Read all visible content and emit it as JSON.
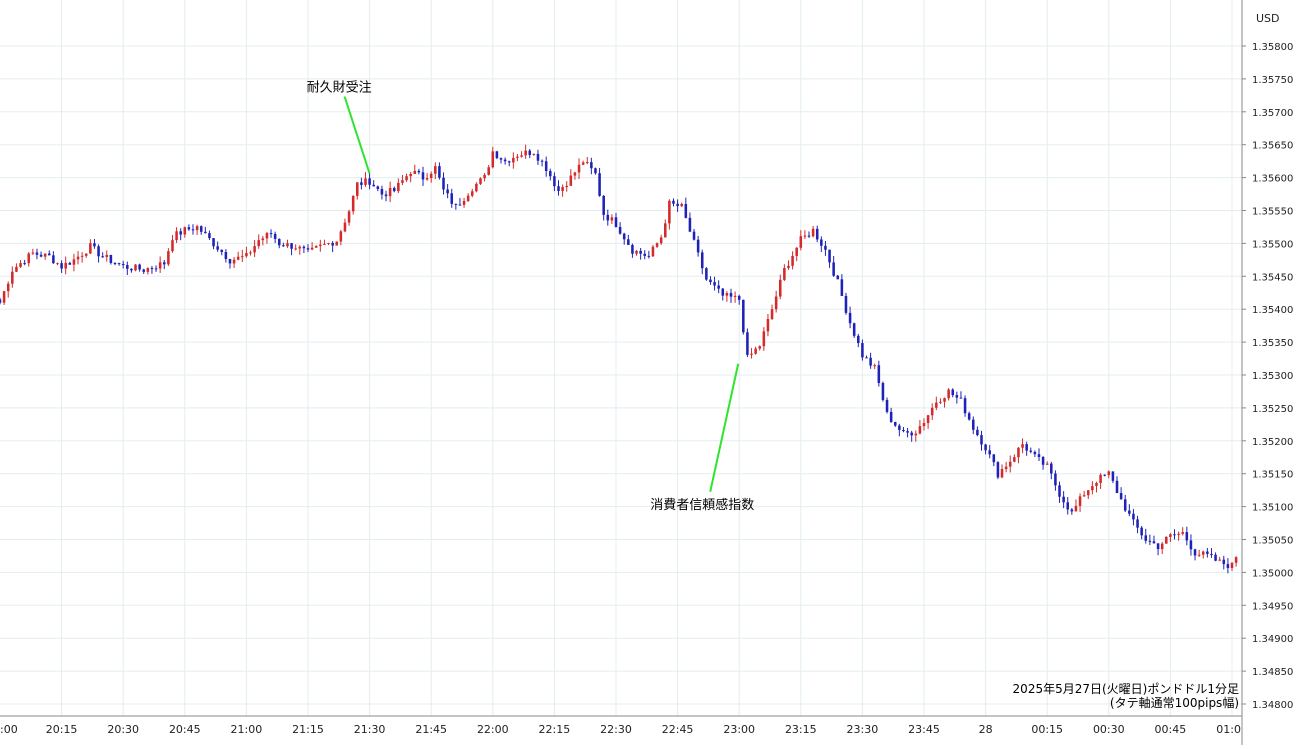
{
  "chart_data": {
    "type": "candlestick",
    "currency_label": "USD",
    "caption_line1": "2025年5月27日(火曜日)ポンドドル1分足",
    "caption_line2": "(タテ軸通常100pips幅)",
    "y_ticks": [
      "1.35800",
      "1.35750",
      "1.35700",
      "1.35650",
      "1.35600",
      "1.35550",
      "1.35500",
      "1.35450",
      "1.35400",
      "1.35350",
      "1.35300",
      "1.35250",
      "1.35200",
      "1.35150",
      "1.35100",
      "1.35050",
      "1.35000",
      "1.34950",
      "1.34900",
      "1.34850",
      "1.34800"
    ],
    "x_ticks": [
      ":00",
      "20:15",
      "20:30",
      "20:45",
      "21:00",
      "21:15",
      "21:30",
      "21:45",
      "22:00",
      "22:15",
      "22:30",
      "22:45",
      "23:00",
      "23:15",
      "23:30",
      "23:45",
      "28",
      "00:15",
      "00:30",
      "00:45",
      "01:0"
    ],
    "annotations": [
      {
        "label": "耐久財受注",
        "time": "21:30",
        "price": 1.356
      },
      {
        "label": "消費者信頼感指数",
        "time": "23:00",
        "price": 1.3532
      }
    ],
    "up_color": "#d42a2a",
    "down_color": "#1f22b8",
    "marker_line_color": "#2ee52e",
    "close_path": [
      [
        "20:00",
        1.3541
      ],
      [
        "20:03",
        1.3546
      ],
      [
        "20:05",
        1.3547
      ],
      [
        "20:08",
        1.35485
      ],
      [
        "20:12",
        1.3548
      ],
      [
        "20:15",
        1.35465
      ],
      [
        "20:18",
        1.35475
      ],
      [
        "20:22",
        1.35495
      ],
      [
        "20:25",
        1.3548
      ],
      [
        "20:30",
        1.35465
      ],
      [
        "20:35",
        1.3546
      ],
      [
        "20:40",
        1.3547
      ],
      [
        "20:42",
        1.3551
      ],
      [
        "20:45",
        1.3552
      ],
      [
        "20:48",
        1.35525
      ],
      [
        "20:52",
        1.355
      ],
      [
        "20:56",
        1.35475
      ],
      [
        "21:00",
        1.3548
      ],
      [
        "21:03",
        1.35505
      ],
      [
        "21:06",
        1.35515
      ],
      [
        "21:08",
        1.355
      ],
      [
        "21:12",
        1.35495
      ],
      [
        "21:15",
        1.35485
      ],
      [
        "21:18",
        1.35495
      ],
      [
        "21:22",
        1.35505
      ],
      [
        "21:25",
        1.3555
      ],
      [
        "21:27",
        1.3559
      ],
      [
        "21:30",
        1.35595
      ],
      [
        "21:33",
        1.35575
      ],
      [
        "21:36",
        1.3558
      ],
      [
        "21:40",
        1.3561
      ],
      [
        "21:43",
        1.356
      ],
      [
        "21:46",
        1.35615
      ],
      [
        "21:48",
        1.3558
      ],
      [
        "21:51",
        1.35555
      ],
      [
        "21:55",
        1.35585
      ],
      [
        "21:58",
        1.356
      ],
      [
        "22:00",
        1.3564
      ],
      [
        "22:03",
        1.35625
      ],
      [
        "22:06",
        1.35635
      ],
      [
        "22:10",
        1.3564
      ],
      [
        "22:13",
        1.35615
      ],
      [
        "22:16",
        1.3558
      ],
      [
        "22:19",
        1.356
      ],
      [
        "22:22",
        1.35625
      ],
      [
        "22:25",
        1.35605
      ],
      [
        "22:27",
        1.35545
      ],
      [
        "22:30",
        1.3553
      ],
      [
        "22:34",
        1.3549
      ],
      [
        "22:38",
        1.3548
      ],
      [
        "22:41",
        1.3551
      ],
      [
        "22:43",
        1.3556
      ],
      [
        "22:46",
        1.35555
      ],
      [
        "22:49",
        1.355
      ],
      [
        "22:52",
        1.35445
      ],
      [
        "22:56",
        1.3542
      ],
      [
        "23:00",
        1.35415
      ],
      [
        "23:02",
        1.35325
      ],
      [
        "23:05",
        1.35345
      ],
      [
        "23:08",
        1.354
      ],
      [
        "23:11",
        1.3546
      ],
      [
        "23:15",
        1.35505
      ],
      [
        "23:18",
        1.3552
      ],
      [
        "23:21",
        1.3549
      ],
      [
        "23:24",
        1.3544
      ],
      [
        "23:27",
        1.3538
      ],
      [
        "23:30",
        1.3533
      ],
      [
        "23:33",
        1.3531
      ],
      [
        "23:36",
        1.3524
      ],
      [
        "23:40",
        1.3521
      ],
      [
        "23:43",
        1.35215
      ],
      [
        "23:45",
        1.3523
      ],
      [
        "23:48",
        1.3526
      ],
      [
        "23:51",
        1.35275
      ],
      [
        "23:54",
        1.3526
      ],
      [
        "23:57",
        1.3522
      ],
      [
        "00:00",
        1.3519
      ],
      [
        "00:03",
        1.3515
      ],
      [
        "00:06",
        1.3517
      ],
      [
        "00:09",
        1.35195
      ],
      [
        "00:12",
        1.35175
      ],
      [
        "00:15",
        1.3516
      ],
      [
        "00:18",
        1.3512
      ],
      [
        "00:21",
        1.3509
      ],
      [
        "00:24",
        1.3512
      ],
      [
        "00:27",
        1.3514
      ],
      [
        "00:30",
        1.3515
      ],
      [
        "00:33",
        1.3511
      ],
      [
        "00:36",
        1.35075
      ],
      [
        "00:39",
        1.3505
      ],
      [
        "00:42",
        1.3504
      ],
      [
        "00:45",
        1.35055
      ],
      [
        "00:48",
        1.3506
      ],
      [
        "00:51",
        1.3503
      ],
      [
        "00:54",
        1.35025
      ],
      [
        "00:57",
        1.35015
      ],
      [
        "01:00",
        1.3501
      ],
      [
        "01:02",
        1.3504
      ]
    ]
  }
}
